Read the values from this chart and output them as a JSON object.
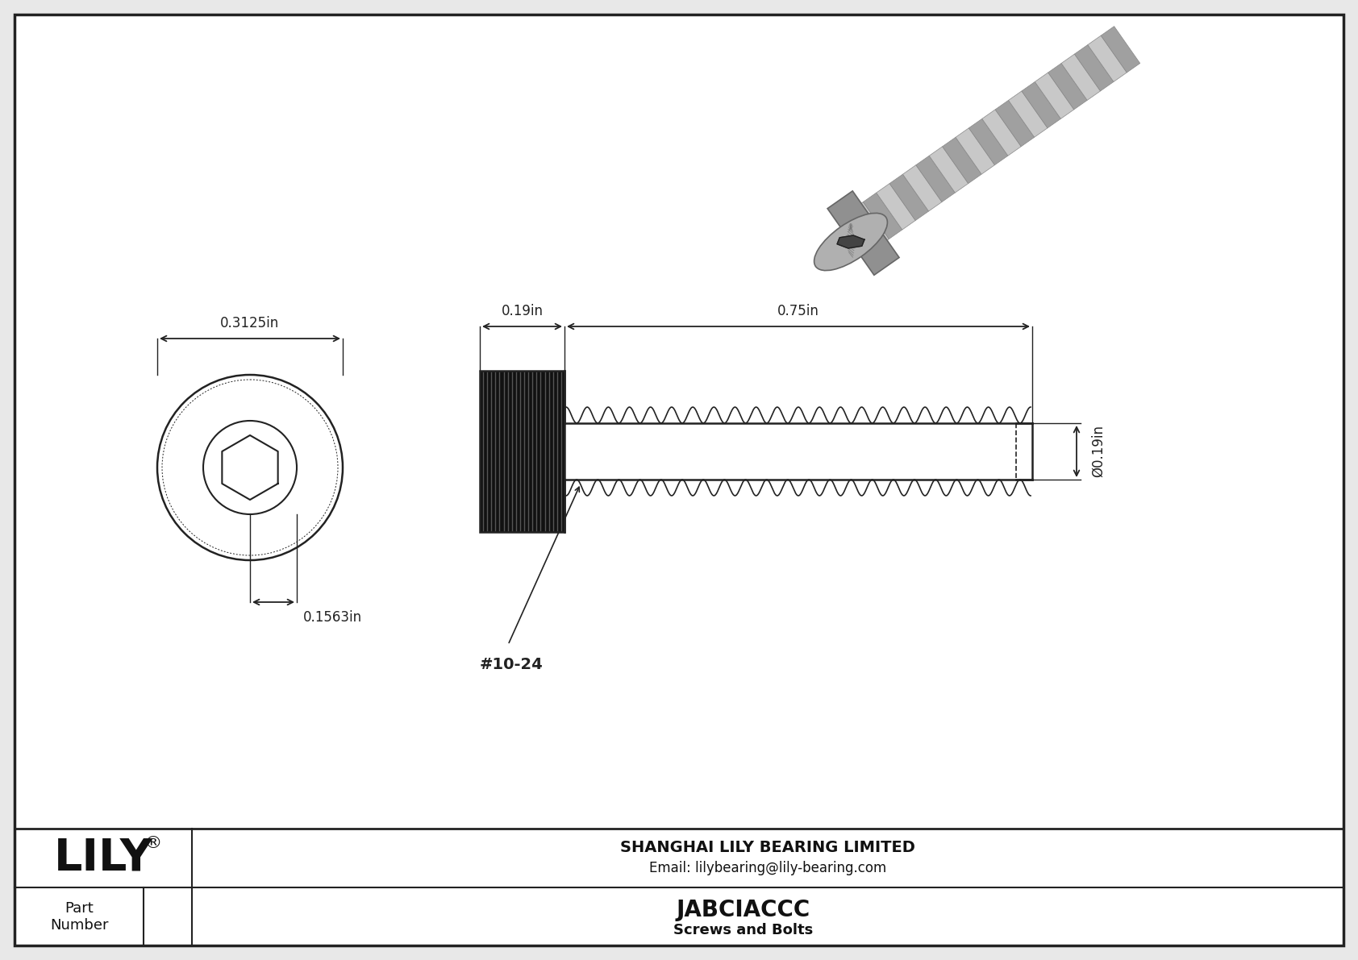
{
  "bg_color": "#e8e8e8",
  "border_color": "#222222",
  "drawing_bg": "#ffffff",
  "line_color": "#222222",
  "dim_color": "#222222",
  "title": "JABCIACCC",
  "subtitle": "Screws and Bolts",
  "company": "SHANGHAI LILY BEARING LIMITED",
  "email": "Email: lilybearing@lily-bearing.com",
  "part_label": "Part\nNumber",
  "lily_text": "LILY",
  "thread_label": "#10-24",
  "dim_head_width": "0.3125in",
  "dim_socket": "0.1563in",
  "dim_head_len": "0.19in",
  "dim_shaft_len": "0.75in",
  "dim_diameter": "Ø0.19in"
}
